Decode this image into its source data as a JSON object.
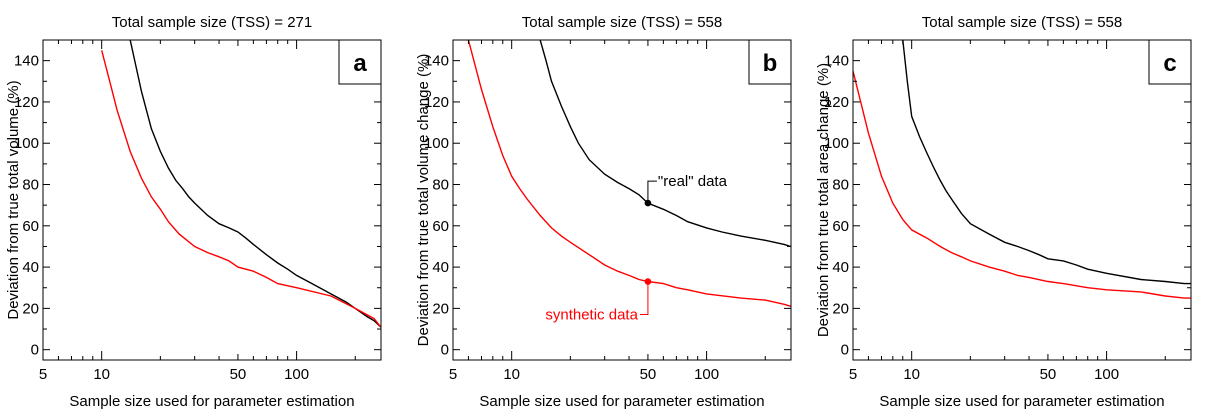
{
  "chart_data": [
    {
      "type": "line",
      "panel_label": "a",
      "title": "Total sample size (TSS) =  271",
      "xlabel": "Sample size used for parameter estimation",
      "ylabel": "Deviation from true total volume (%)",
      "xscale": "log",
      "xlim": [
        5,
        271
      ],
      "ylim": [
        -5,
        150
      ],
      "xticks": [
        5,
        10,
        50,
        100
      ],
      "yticks": [
        0,
        20,
        40,
        60,
        80,
        100,
        120,
        140
      ],
      "series": [
        {
          "color": "#000000",
          "x": [
            14,
            16,
            18,
            20,
            22,
            24,
            26,
            28,
            30,
            35,
            40,
            45,
            50,
            55,
            60,
            70,
            80,
            90,
            100,
            120,
            150,
            180,
            200,
            230,
            250,
            270
          ],
          "y": [
            150,
            125,
            107,
            96,
            88,
            82,
            78,
            74,
            71,
            65,
            61,
            59,
            57,
            54,
            51,
            46,
            42,
            39,
            36,
            32,
            27,
            23,
            20,
            16,
            14,
            11
          ]
        },
        {
          "color": "#ff0000",
          "x": [
            10,
            11,
            12,
            14,
            16,
            18,
            20,
            22,
            25,
            30,
            35,
            40,
            45,
            50,
            60,
            70,
            80,
            100,
            150,
            200,
            250,
            270
          ],
          "y": [
            145,
            130,
            116,
            96,
            83,
            74,
            68,
            62,
            56,
            50,
            47,
            45,
            43,
            40,
            38,
            35,
            32,
            30,
            26,
            20,
            15,
            11
          ]
        }
      ]
    },
    {
      "type": "line",
      "panel_label": "b",
      "title": "Total sample size (TSS) =  558",
      "xlabel": "Sample size used for parameter estimation",
      "ylabel": "Deviation from true total volume change (%)",
      "xscale": "log",
      "xlim": [
        5,
        271
      ],
      "ylim": [
        -5,
        150
      ],
      "xticks": [
        5,
        10,
        50,
        100
      ],
      "yticks": [
        0,
        20,
        40,
        60,
        80,
        100,
        120,
        140
      ],
      "annotations": [
        "\"real\" data",
        "synthetic data"
      ],
      "series": [
        {
          "color": "#000000",
          "x": [
            14,
            15,
            16,
            18,
            20,
            22,
            25,
            30,
            35,
            40,
            45,
            50,
            60,
            70,
            80,
            100,
            120,
            150,
            200,
            250,
            270
          ],
          "y": [
            150,
            140,
            130,
            118,
            108,
            100,
            92,
            85,
            81,
            78,
            75,
            71,
            68,
            65,
            62,
            59,
            57,
            55,
            53,
            51,
            50
          ]
        },
        {
          "color": "#ff0000",
          "x": [
            6,
            7,
            8,
            9,
            10,
            11,
            12,
            14,
            16,
            18,
            20,
            25,
            30,
            35,
            40,
            45,
            50,
            60,
            70,
            80,
            100,
            150,
            200,
            250,
            270
          ],
          "y": [
            150,
            126,
            108,
            94,
            84,
            78,
            73,
            65,
            59,
            55,
            52,
            46,
            41,
            38,
            36,
            34,
            33,
            32,
            30,
            29,
            27,
            25,
            24,
            22,
            21
          ]
        }
      ]
    },
    {
      "type": "line",
      "panel_label": "c",
      "title": "Total sample size (TSS) = 558",
      "xlabel": "Sample size used for parameter estimation",
      "ylabel": "Deviation from true total area change (%)",
      "xscale": "log",
      "xlim": [
        5,
        271
      ],
      "ylim": [
        -5,
        150
      ],
      "xticks": [
        5,
        10,
        50,
        100
      ],
      "yticks": [
        0,
        20,
        40,
        60,
        80,
        100,
        120,
        140
      ],
      "series": [
        {
          "color": "#000000",
          "x": [
            9,
            9.5,
            10,
            11,
            12,
            13,
            14,
            15,
            16,
            18,
            20,
            25,
            30,
            35,
            40,
            45,
            50,
            60,
            70,
            80,
            100,
            150,
            200,
            250,
            270
          ],
          "y": [
            150,
            130,
            113,
            103,
            95,
            88,
            82,
            77,
            73,
            66,
            61,
            56,
            52,
            50,
            48,
            46,
            44,
            43,
            41,
            39,
            37,
            34,
            33,
            32,
            32
          ]
        },
        {
          "color": "#ff0000",
          "x": [
            5,
            6,
            7,
            8,
            9,
            10,
            12,
            14,
            16,
            18,
            20,
            25,
            30,
            35,
            40,
            50,
            60,
            80,
            100,
            150,
            200,
            250,
            270
          ],
          "y": [
            135,
            105,
            84,
            71,
            63,
            58,
            54,
            50,
            47,
            45,
            43,
            40,
            38,
            36,
            35,
            33,
            32,
            30,
            29,
            28,
            26,
            25,
            25
          ]
        }
      ]
    }
  ]
}
